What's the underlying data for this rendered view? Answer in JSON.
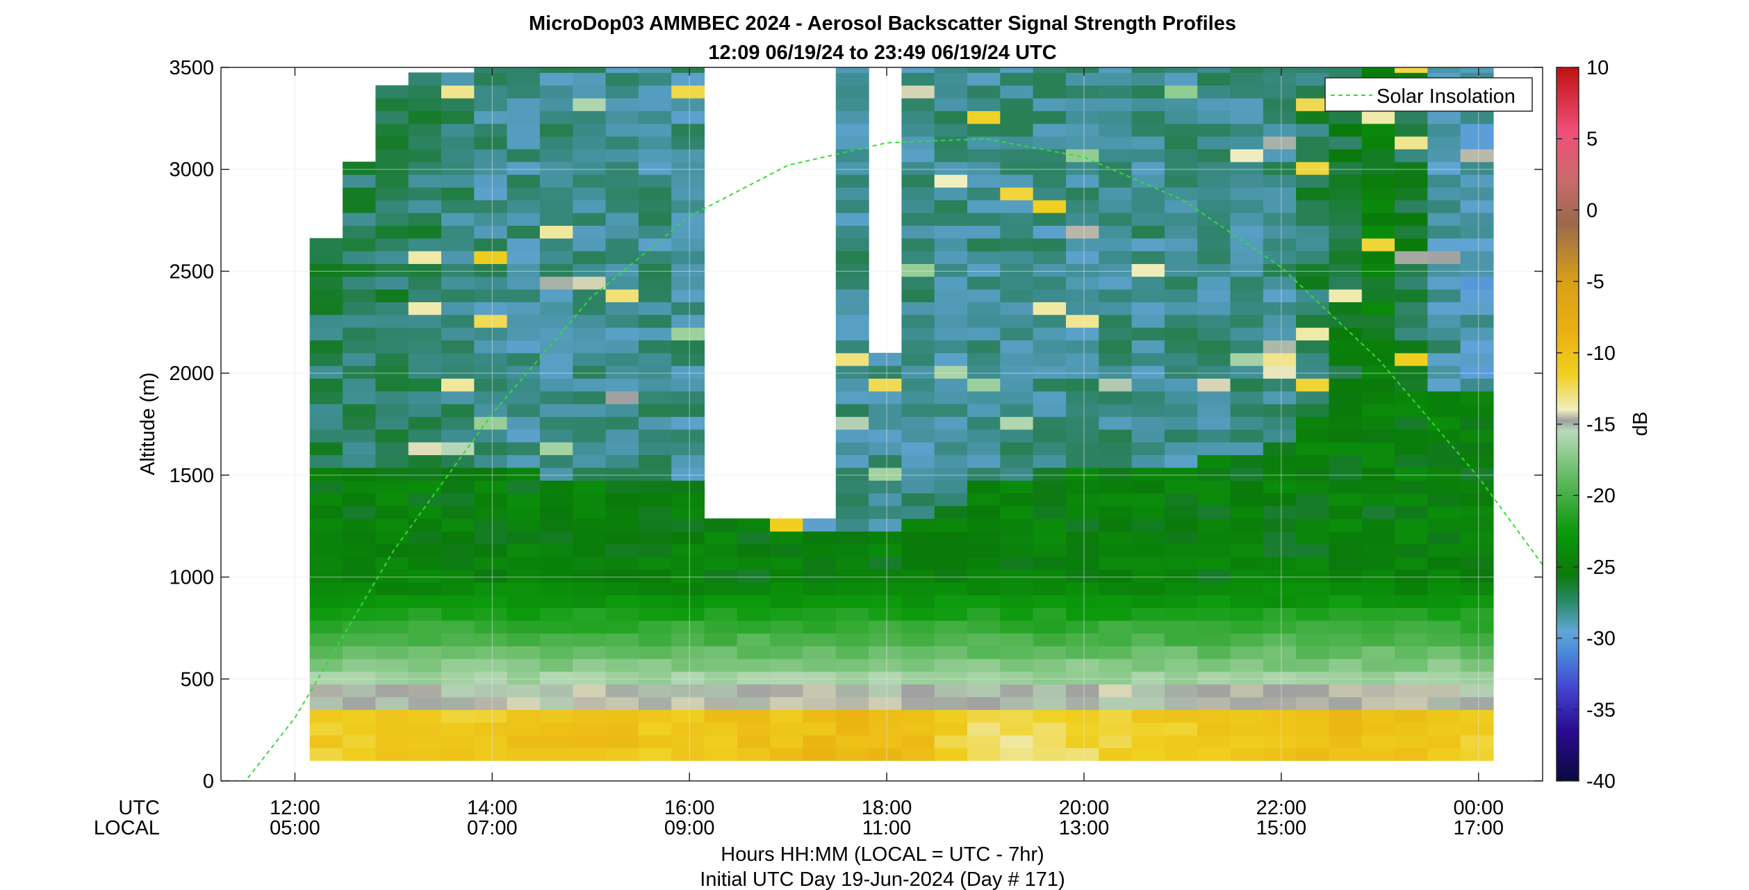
{
  "title_line1": "MicroDop03 AMMBEC 2024 - Aerosol Backscatter Signal Strength Profiles",
  "title_line2": "12:09 06/19/24 to 23:49 06/19/24  UTC",
  "ylabel": "Altitude (m)",
  "xlabel_line1": "Hours HH:MM  (LOCAL = UTC - 7hr)",
  "xlabel_line2": "Initial UTC Day 19-Jun-2024 (Day # 171)",
  "x_row_labels": {
    "utc": "UTC",
    "local": "LOCAL"
  },
  "legend": {
    "label": "Solar Insolation",
    "color": "#33dd33"
  },
  "colorbar": {
    "label": "dB",
    "ticks": [
      "10",
      "5",
      "0",
      "-5",
      "-10",
      "-15",
      "-20",
      "-25",
      "-30",
      "-35",
      "-40"
    ],
    "range": [
      -40,
      10
    ]
  },
  "y_ticks": [
    "3500",
    "3000",
    "2500",
    "2000",
    "1500",
    "1000",
    "500",
    "0"
  ],
  "x_ticks": [
    {
      "utc": "12:00",
      "local": "05:00"
    },
    {
      "utc": "14:00",
      "local": "07:00"
    },
    {
      "utc": "16:00",
      "local": "09:00"
    },
    {
      "utc": "18:00",
      "local": "11:00"
    },
    {
      "utc": "20:00",
      "local": "13:00"
    },
    {
      "utc": "22:00",
      "local": "15:00"
    },
    {
      "utc": "00:00",
      "local": "17:00"
    }
  ],
  "chart_data": {
    "type": "heatmap",
    "title": "MicroDop03 AMMBEC 2024 - Aerosol Backscatter Signal Strength Profiles",
    "subtitle": "12:09 06/19/24 to 23:49 06/19/24  UTC",
    "xlabel": "Hours HH:MM  (LOCAL = UTC - 7hr)",
    "ylabel": "Altitude (m)",
    "zlabel": "dB",
    "xlim_utc_hours": [
      11.25,
      24.65
    ],
    "ylim": [
      0,
      3500
    ],
    "zlim": [
      -40,
      10
    ],
    "grid": true,
    "legend_position": "top-right",
    "series": [
      {
        "name": "Solar Insolation",
        "type": "line",
        "style": "dashed",
        "x": [
          11.15,
          11.5,
          12.0,
          13.0,
          14.0,
          15.0,
          16.0,
          17.0,
          18.0,
          19.0,
          20.0,
          21.0,
          22.0,
          23.0,
          24.0,
          24.65
        ],
        "y": [
          0,
          0,
          310,
          1130,
          1800,
          2370,
          2770,
          3020,
          3130,
          3150,
          3060,
          2850,
          2520,
          2060,
          1490,
          1060
        ]
      }
    ],
    "time_profiles": [
      {
        "utc": "12:09",
        "boundary_layer_top_m": 1550,
        "surface_layer_db": -11,
        "aloft_db": -27,
        "data_top_m": 2450
      },
      {
        "utc": "13:00",
        "boundary_layer_top_m": 1550,
        "surface_layer_db": -11,
        "aloft_db": -27,
        "data_top_m": 3400
      },
      {
        "utc": "14:00",
        "boundary_layer_top_m": 1550,
        "surface_layer_db": -11,
        "aloft_db": -28,
        "data_top_m": 3500
      },
      {
        "utc": "15:00",
        "boundary_layer_top_m": 1450,
        "surface_layer_db": -10,
        "aloft_db": -28,
        "data_top_m": 3500
      },
      {
        "utc": "16:00",
        "boundary_layer_top_m": 1450,
        "surface_layer_db": -11,
        "aloft_db": -28,
        "data_top_m": 3500
      },
      {
        "utc": "17:00",
        "boundary_layer_top_m": 1250,
        "surface_layer_db": -10,
        "aloft_db": -28,
        "data_top_m": 3500
      },
      {
        "utc": "18:00",
        "boundary_layer_top_m": 1200,
        "surface_layer_db": -9,
        "aloft_db": -28,
        "data_top_m": 3500
      },
      {
        "utc": "19:00",
        "boundary_layer_top_m": 1450,
        "surface_layer_db": -13,
        "aloft_db": -28,
        "data_top_m": 3500
      },
      {
        "utc": "20:00",
        "boundary_layer_top_m": 1550,
        "surface_layer_db": -12,
        "aloft_db": -28,
        "data_top_m": 3500
      },
      {
        "utc": "21:00",
        "boundary_layer_top_m": 1550,
        "surface_layer_db": -11,
        "aloft_db": -28,
        "data_top_m": 3500
      },
      {
        "utc": "22:00",
        "boundary_layer_top_m": 1650,
        "surface_layer_db": -10,
        "aloft_db": -28,
        "data_top_m": 3500
      },
      {
        "utc": "23:00",
        "boundary_layer_top_m": 2100,
        "surface_layer_db": -10,
        "aloft_db": -25,
        "data_top_m": 3500
      },
      {
        "utc": "23:49",
        "boundary_layer_top_m": 1900,
        "surface_layer_db": -11,
        "aloft_db": -29,
        "data_top_m": 3500
      }
    ],
    "missing_data_gaps_utc": [
      {
        "start": "16:10",
        "end": "17:30",
        "from_altitude_m": 1300
      },
      {
        "start": "17:50",
        "end": "18:10",
        "from_altitude_m": 2100
      }
    ]
  }
}
